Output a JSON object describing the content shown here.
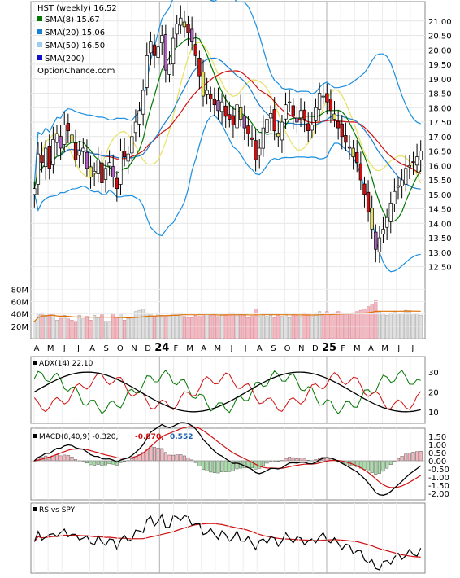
{
  "chart_data": {
    "type": "candlestick",
    "symbol_title": "HST (weekly) 16.52",
    "watermark": "OptionChance.com",
    "legend": [
      {
        "label": "SMA(8) 15.67",
        "color": "#007700"
      },
      {
        "label": "SMA(20) 15.06",
        "color": "#1a7fd0"
      },
      {
        "label": "SMA(50) 16.50",
        "color": "#9ecbf0"
      },
      {
        "label": "SMA(200)",
        "color": "#1010c8"
      }
    ],
    "price_ticks": [
      "21.00",
      "20.50",
      "20.00",
      "19.50",
      "19.00",
      "18.50",
      "18.00",
      "17.50",
      "17.00",
      "16.50",
      "16.00",
      "15.50",
      "15.00",
      "14.50",
      "14.00",
      "13.50",
      "13.00",
      "12.50"
    ],
    "price_values": [
      21.0,
      20.5,
      20.0,
      19.5,
      19.0,
      18.5,
      18.0,
      17.5,
      17.0,
      16.5,
      16.0,
      15.5,
      15.0,
      14.5,
      14.0,
      13.5,
      13.0,
      12.5
    ],
    "price_range": [
      12.15,
      21.5
    ],
    "volume_ticks": [
      "80M",
      "60M",
      "40M",
      "20M"
    ],
    "volume_values": [
      80,
      60,
      40,
      20
    ],
    "month_labels": [
      "A",
      "M",
      "J",
      "J",
      "A",
      "S",
      "O",
      "N",
      "D",
      "24",
      "F",
      "M",
      "A",
      "M",
      "J",
      "J",
      "A",
      "S",
      "O",
      "N",
      "D",
      "25",
      "F",
      "M",
      "A",
      "M",
      "J",
      "J"
    ],
    "year_markers": [
      "24",
      "25"
    ],
    "close": [
      15.2,
      16.4,
      16.1,
      16.6,
      15.9,
      16.9,
      17.1,
      16.6,
      17.4,
      17.2,
      16.8,
      16.2,
      16.5,
      16.6,
      15.9,
      15.6,
      15.8,
      16.2,
      15.4,
      15.9,
      16.1,
      15.6,
      15.2,
      16.5,
      16.3,
      16.4,
      17.0,
      17.5,
      17.9,
      18.6,
      19.8,
      20.3,
      19.8,
      20.1,
      20.5,
      19.3,
      19.5,
      20.4,
      20.9,
      21.1,
      20.8,
      20.6,
      20.3,
      19.8,
      19.1,
      18.4,
      18.6,
      18.3,
      18.1,
      17.9,
      18.2,
      17.7,
      17.6,
      17.4,
      18.1,
      17.6,
      17.3,
      17.1,
      16.9,
      16.2,
      16.6,
      17.3,
      17.6,
      17.8,
      17.2,
      17.0,
      17.5,
      18.1,
      18.2,
      17.7,
      17.5,
      17.9,
      17.6,
      17.2,
      17.4,
      18.0,
      18.5,
      18.4,
      18.2,
      17.9,
      17.6,
      17.3,
      17.0,
      16.8,
      16.6,
      16.3,
      16.1,
      15.5,
      15.0,
      14.4,
      13.8,
      13.1,
      13.5,
      13.8,
      14.2,
      14.7,
      15.1,
      15.3,
      15.5,
      15.9,
      16.0,
      16.1,
      16.3,
      16.5
    ],
    "volume": [
      28,
      40,
      42,
      38,
      40,
      40,
      30,
      33,
      38,
      32,
      30,
      28,
      38,
      32,
      36,
      30,
      38,
      34,
      40,
      28,
      28,
      40,
      34,
      40,
      30,
      32,
      34,
      44,
      46,
      48,
      42,
      40,
      36,
      40,
      38,
      36,
      38,
      42,
      40,
      42,
      36,
      34,
      34,
      38,
      36,
      40,
      40,
      38,
      40,
      36,
      40,
      40,
      42,
      42,
      38,
      40,
      38,
      34,
      36,
      48,
      36,
      40,
      36,
      38,
      34,
      40,
      36,
      42,
      34,
      40,
      38,
      36,
      42,
      40,
      36,
      42,
      44,
      40,
      44,
      40,
      42,
      44,
      42,
      40,
      40,
      42,
      44,
      46,
      48,
      52,
      56,
      62,
      44,
      40,
      38,
      42,
      44,
      40,
      42,
      46,
      44,
      40,
      40,
      38
    ],
    "sma200_volume_level": 40,
    "adx_label": "ADX(14) 22.10",
    "adx_ticks": [
      "30",
      "20",
      "10"
    ],
    "adx_values": [
      30,
      20,
      10
    ],
    "macd_label": "MACD(8,40,9) -0.320,",
    "macd_signal_value": "-0.870,",
    "macd_hist_value": "0.552",
    "macd_ticks": [
      "1.50",
      "1.00",
      "0.50",
      "0.00",
      "-0.50",
      "-1.00",
      "-1.50",
      "-2.00"
    ],
    "macd_values": [
      1.5,
      1.0,
      0.5,
      0.0,
      -0.5,
      -1.0,
      -1.5,
      -2.0
    ],
    "rs_label": "RS vs SPY"
  }
}
